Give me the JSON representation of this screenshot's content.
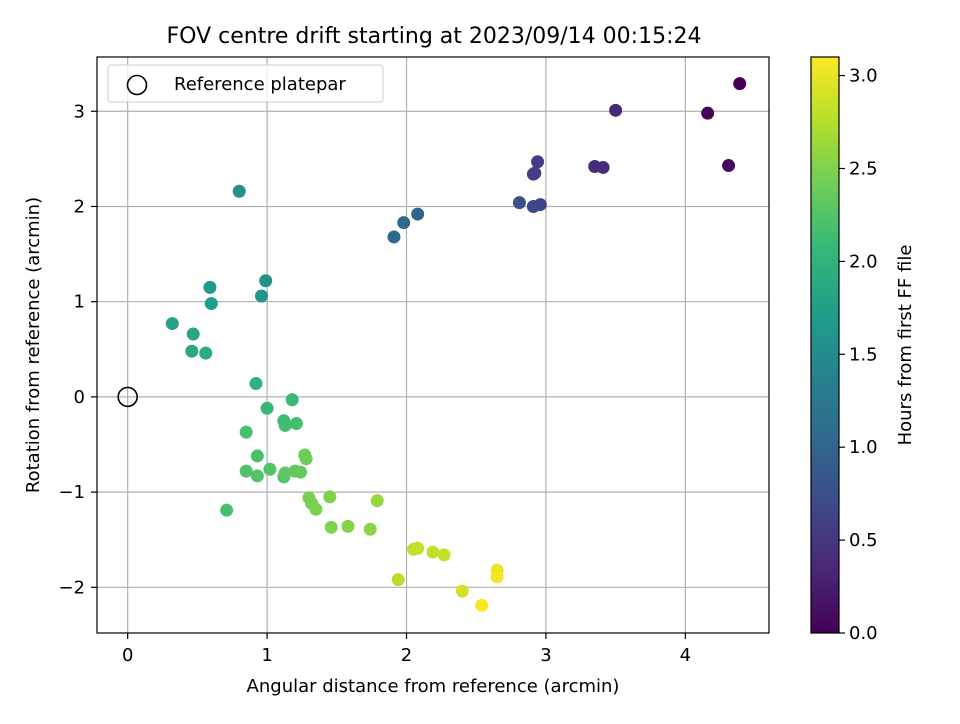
{
  "chart_data": {
    "type": "scatter",
    "title": "FOV centre drift starting at 2023/09/14 00:15:24",
    "xlabel": "Angular distance from reference (arcmin)",
    "ylabel": "Rotation from reference (arcmin)",
    "xlim": [
      -0.22,
      4.6
    ],
    "ylim": [
      -2.48,
      3.57
    ],
    "x_ticks": [
      0,
      1,
      2,
      3,
      4
    ],
    "y_ticks": [
      -2,
      -1,
      0,
      1,
      2,
      3
    ],
    "x_tick_labels": [
      "0",
      "1",
      "2",
      "3",
      "4"
    ],
    "y_tick_labels": [
      "−2",
      "−1",
      "0",
      "1",
      "2",
      "3"
    ],
    "grid": true,
    "legend": {
      "position": "top-left",
      "entries": [
        "Reference platepar"
      ]
    },
    "reference_point": {
      "x": 0,
      "y": 0,
      "label": "Reference platepar"
    },
    "colorbar": {
      "label": "Hours from first FF file",
      "range": [
        0.0,
        3.1
      ],
      "ticks": [
        0.0,
        0.5,
        1.0,
        1.5,
        2.0,
        2.5,
        3.0
      ],
      "tick_labels": [
        "0.0",
        "0.5",
        "1.0",
        "1.5",
        "2.0",
        "2.5",
        "3.0"
      ],
      "colormap": "viridis"
    },
    "colormap_stops": [
      "#440154",
      "#482878",
      "#3e4989",
      "#31688e",
      "#26828e",
      "#1f9e89",
      "#35b779",
      "#6ece58",
      "#b5de2b",
      "#fde725"
    ],
    "points": [
      {
        "x": 4.39,
        "y": 3.29,
        "hours": 0.0
      },
      {
        "x": 4.16,
        "y": 2.98,
        "hours": 0.03
      },
      {
        "x": 4.31,
        "y": 2.43,
        "hours": 0.06
      },
      {
        "x": 3.5,
        "y": 3.01,
        "hours": 0.35
      },
      {
        "x": 3.35,
        "y": 2.42,
        "hours": 0.38
      },
      {
        "x": 3.41,
        "y": 2.41,
        "hours": 0.4
      },
      {
        "x": 2.94,
        "y": 2.47,
        "hours": 0.55
      },
      {
        "x": 2.92,
        "y": 2.35,
        "hours": 0.58
      },
      {
        "x": 2.91,
        "y": 2.34,
        "hours": 0.6
      },
      {
        "x": 2.96,
        "y": 2.02,
        "hours": 0.63
      },
      {
        "x": 2.91,
        "y": 2.0,
        "hours": 0.66
      },
      {
        "x": 2.81,
        "y": 2.04,
        "hours": 0.78
      },
      {
        "x": 2.08,
        "y": 1.92,
        "hours": 1.0
      },
      {
        "x": 1.98,
        "y": 1.83,
        "hours": 1.03
      },
      {
        "x": 1.91,
        "y": 1.68,
        "hours": 1.05
      },
      {
        "x": 0.8,
        "y": 2.16,
        "hours": 1.55
      },
      {
        "x": 0.99,
        "y": 1.22,
        "hours": 1.58
      },
      {
        "x": 0.96,
        "y": 1.06,
        "hours": 1.6
      },
      {
        "x": 0.59,
        "y": 1.15,
        "hours": 1.7
      },
      {
        "x": 0.6,
        "y": 0.98,
        "hours": 1.72
      },
      {
        "x": 0.32,
        "y": 0.77,
        "hours": 1.8
      },
      {
        "x": 0.47,
        "y": 0.66,
        "hours": 1.85
      },
      {
        "x": 0.46,
        "y": 0.48,
        "hours": 1.88
      },
      {
        "x": 0.56,
        "y": 0.46,
        "hours": 1.9
      },
      {
        "x": 0.92,
        "y": 0.14,
        "hours": 2.0
      },
      {
        "x": 1.0,
        "y": -0.12,
        "hours": 2.08
      },
      {
        "x": 1.18,
        "y": -0.03,
        "hours": 2.1
      },
      {
        "x": 1.12,
        "y": -0.25,
        "hours": 2.12
      },
      {
        "x": 1.13,
        "y": -0.3,
        "hours": 2.14
      },
      {
        "x": 1.21,
        "y": -0.28,
        "hours": 2.16
      },
      {
        "x": 0.85,
        "y": -0.37,
        "hours": 2.18
      },
      {
        "x": 0.71,
        "y": -1.19,
        "hours": 2.18
      },
      {
        "x": 0.93,
        "y": -0.62,
        "hours": 2.2
      },
      {
        "x": 0.85,
        "y": -0.78,
        "hours": 2.22
      },
      {
        "x": 0.93,
        "y": -0.83,
        "hours": 2.24
      },
      {
        "x": 1.02,
        "y": -0.76,
        "hours": 2.25
      },
      {
        "x": 1.12,
        "y": -0.84,
        "hours": 2.26
      },
      {
        "x": 1.13,
        "y": -0.8,
        "hours": 2.3
      },
      {
        "x": 1.2,
        "y": -0.78,
        "hours": 2.32
      },
      {
        "x": 1.24,
        "y": -0.79,
        "hours": 2.35
      },
      {
        "x": 1.27,
        "y": -0.61,
        "hours": 2.38
      },
      {
        "x": 1.28,
        "y": -0.65,
        "hours": 2.4
      },
      {
        "x": 1.3,
        "y": -1.06,
        "hours": 2.45
      },
      {
        "x": 1.32,
        "y": -1.12,
        "hours": 2.46
      },
      {
        "x": 1.35,
        "y": -1.18,
        "hours": 2.48
      },
      {
        "x": 1.45,
        "y": -1.05,
        "hours": 2.5
      },
      {
        "x": 1.46,
        "y": -1.37,
        "hours": 2.5
      },
      {
        "x": 1.58,
        "y": -1.36,
        "hours": 2.52
      },
      {
        "x": 1.74,
        "y": -1.39,
        "hours": 2.55
      },
      {
        "x": 1.79,
        "y": -1.09,
        "hours": 2.62
      },
      {
        "x": 1.94,
        "y": -1.92,
        "hours": 2.78
      },
      {
        "x": 2.05,
        "y": -1.6,
        "hours": 2.8
      },
      {
        "x": 2.08,
        "y": -1.59,
        "hours": 2.82
      },
      {
        "x": 2.19,
        "y": -1.63,
        "hours": 2.82
      },
      {
        "x": 2.27,
        "y": -1.66,
        "hours": 2.84
      },
      {
        "x": 2.4,
        "y": -2.04,
        "hours": 2.9
      },
      {
        "x": 2.65,
        "y": -1.82,
        "hours": 3.0
      },
      {
        "x": 2.65,
        "y": -1.89,
        "hours": 3.05
      },
      {
        "x": 2.54,
        "y": -2.19,
        "hours": 3.08
      }
    ]
  }
}
